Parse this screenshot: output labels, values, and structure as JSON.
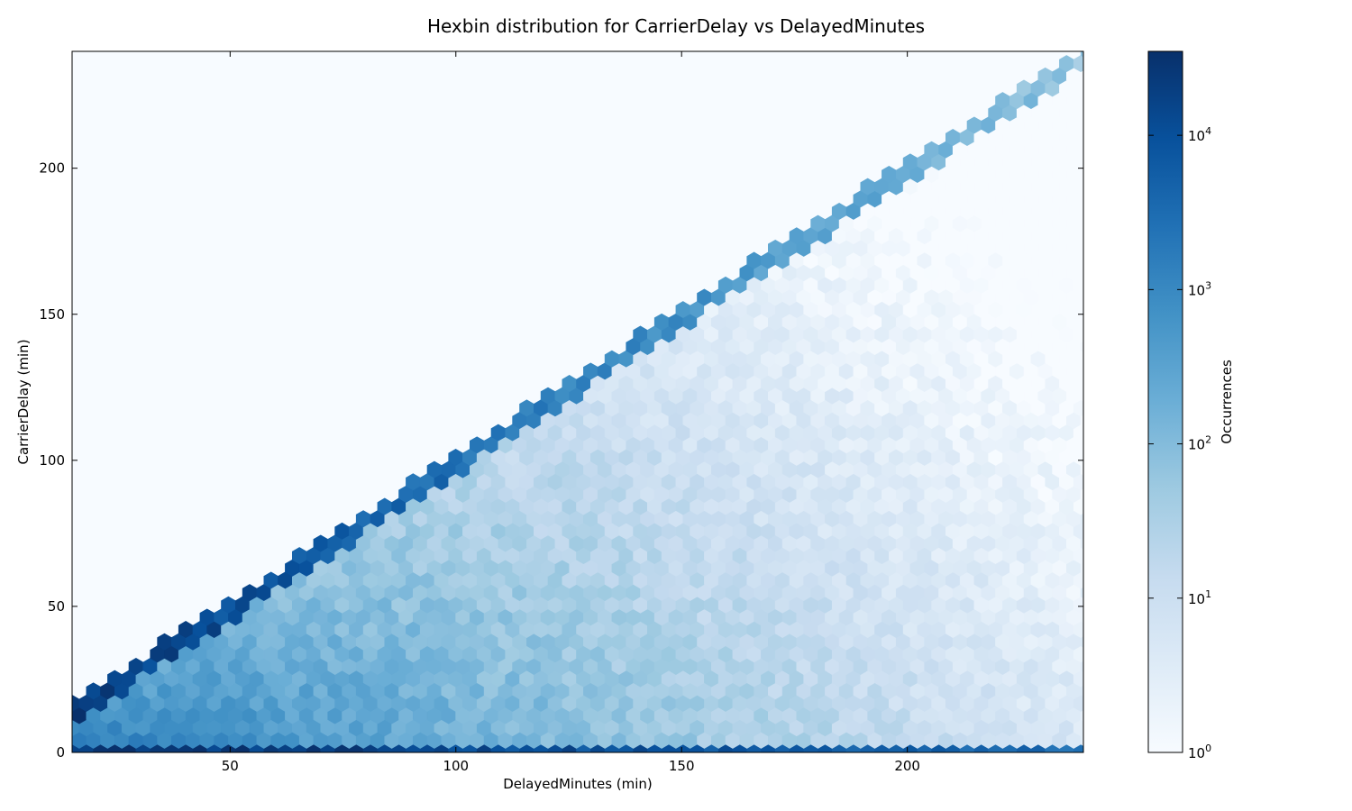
{
  "chart_data": {
    "type": "heatmap",
    "subtype": "hexbin",
    "title": "Hexbin distribution for CarrierDelay vs DelayedMinutes",
    "xlabel": "DelayedMinutes (min)",
    "ylabel": "CarrierDelay (min)",
    "xlim": [
      15,
      239
    ],
    "ylim": [
      0,
      240
    ],
    "xticks": [
      50,
      100,
      150,
      200
    ],
    "yticks": [
      0,
      50,
      100,
      150,
      200
    ],
    "grid": false,
    "colormap": "Blues",
    "colorbar": {
      "label": "Occurrences",
      "scale": "log",
      "range": [
        1,
        35000
      ],
      "ticks": [
        {
          "value": 1,
          "base": "10",
          "exp": "0"
        },
        {
          "value": 10,
          "base": "10",
          "exp": "1"
        },
        {
          "value": 100,
          "base": "10",
          "exp": "2"
        },
        {
          "value": 1000,
          "base": "10",
          "exp": "3"
        },
        {
          "value": 10000,
          "base": "10",
          "exp": "4"
        }
      ]
    },
    "data_region": "y <= x (CarrierDelay cannot exceed DelayedMinutes)",
    "density_summary": [
      {
        "where": "diagonal edge y = x",
        "occurrences_approx": 30000,
        "at_x": 20
      },
      {
        "where": "diagonal edge y = x",
        "occurrences_approx": 300,
        "at_x": 150
      },
      {
        "where": "diagonal edge y = x",
        "occurrences_approx": 60,
        "at_x": 235
      },
      {
        "where": "bottom row y = 0",
        "occurrences_approx": 30000,
        "at_x": 20
      },
      {
        "where": "bottom row y = 0",
        "occurrences_approx": 3000,
        "at_x": 235
      },
      {
        "where": "interior lower-left",
        "occurrences_approx": 2000,
        "at": [
          25,
          5
        ]
      },
      {
        "where": "interior center",
        "occurrences_approx": 20,
        "at": [
          130,
          60
        ]
      },
      {
        "where": "interior right",
        "occurrences_approx": 4,
        "at": [
          220,
          100
        ]
      }
    ],
    "empty_bin_color": "#f7fbff"
  }
}
